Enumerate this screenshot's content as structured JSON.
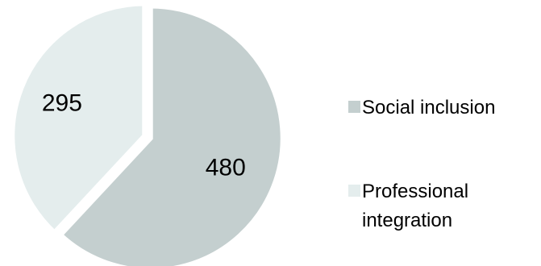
{
  "chart_data": {
    "type": "pie",
    "slices": [
      {
        "label": "Social inclusion",
        "value": 480,
        "color": "#c4cfcf"
      },
      {
        "label": "Professional integration",
        "value": 295,
        "color": "#e4eded"
      }
    ],
    "legend": {
      "position": "right",
      "entries": [
        {
          "label": "Social inclusion",
          "color": "#c4cfcf"
        },
        {
          "lines": [
            "Professional",
            "integration"
          ],
          "color": "#e4eded"
        }
      ]
    },
    "exploded": true
  }
}
